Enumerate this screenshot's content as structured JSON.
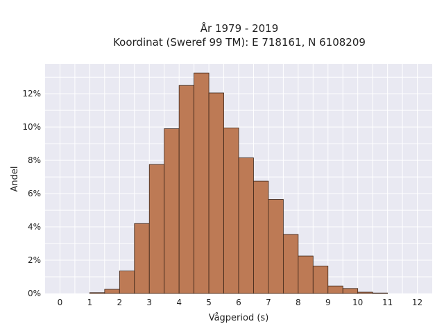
{
  "chart_data": {
    "type": "bar",
    "title": "År 1979 - 2019",
    "subtitle": "Koordinat (Sweref 99 TM): E 718161, N 6108209",
    "xlabel": "Vågperiod (s)",
    "ylabel": "Andel",
    "xlim": [
      -0.5,
      12.5
    ],
    "ylim": [
      0,
      13.8
    ],
    "x_ticks": [
      0,
      1,
      2,
      3,
      4,
      5,
      6,
      7,
      8,
      9,
      10,
      11,
      12
    ],
    "y_ticks": [
      0,
      2,
      4,
      6,
      8,
      10,
      12
    ],
    "y_tick_labels": [
      "0%",
      "2%",
      "4%",
      "6%",
      "8%",
      "10%",
      "12%"
    ],
    "bin_width": 0.5,
    "bin_starts": [
      1.0,
      1.5,
      2.0,
      2.5,
      3.0,
      3.5,
      4.0,
      4.5,
      5.0,
      5.5,
      6.0,
      6.5,
      7.0,
      7.5,
      8.0,
      8.5,
      9.0,
      9.5,
      10.0,
      10.5
    ],
    "values": [
      0.05,
      0.25,
      1.35,
      4.2,
      7.75,
      9.9,
      12.5,
      13.25,
      12.05,
      9.95,
      8.15,
      6.75,
      5.65,
      3.55,
      2.25,
      1.65,
      0.45,
      0.3,
      0.08,
      0.03
    ],
    "grid": true,
    "colors": {
      "bar_fill": "#bd7a55",
      "bar_edge": "#3a2418",
      "plot_background": "#e9e9f2",
      "grid": "#ffffff"
    }
  }
}
